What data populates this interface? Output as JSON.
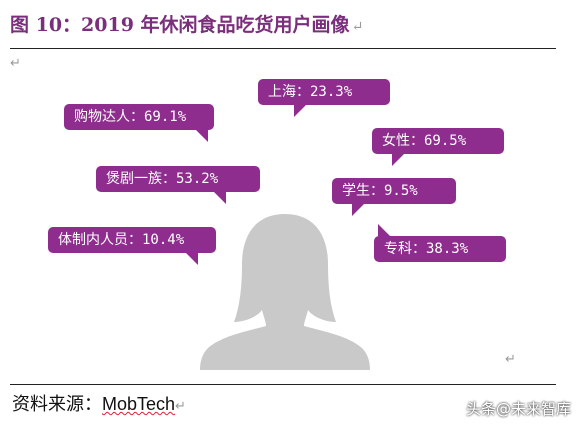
{
  "title": "图 10：2019 年休闲食品吃货用户画像",
  "return_mark": "↵",
  "bubbles": {
    "shanghai": "上海：23.3%",
    "gouwu": "购物达人：69.1%",
    "nvxing": "女性：69.5%",
    "yingju": "煲剧一族：53.2%",
    "xuesheng": "学生：9.5%",
    "tizhi": "体制内人员：10.4%",
    "zhuanke": "专科：38.3%"
  },
  "source_label": "资料来源：",
  "source_brand": "MobTech",
  "watermark": "头条@未来智库",
  "colors": {
    "bubble": "#8e2d8e",
    "title": "#7b2e7b",
    "silhouette": "#c9c9c9"
  }
}
